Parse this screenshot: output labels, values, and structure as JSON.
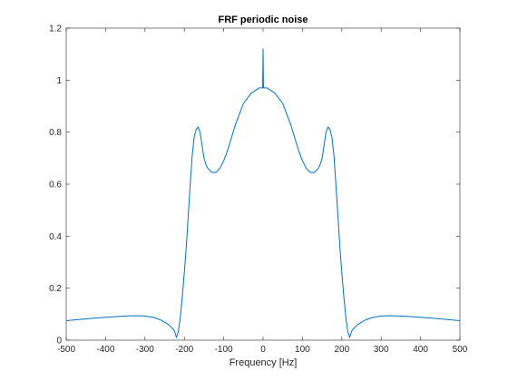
{
  "chart_data": {
    "type": "line",
    "title": "FRF periodic noise",
    "xlabel": "Frequency [Hz]",
    "ylabel": "",
    "xlim": [
      -500,
      500
    ],
    "ylim": [
      0,
      1.2
    ],
    "xticks": [
      -500,
      -400,
      -300,
      -200,
      -100,
      0,
      100,
      200,
      300,
      400,
      500
    ],
    "yticks": [
      0,
      0.2,
      0.4,
      0.6,
      0.8,
      1,
      1.2
    ],
    "grid": false,
    "series": [
      {
        "color": "#0072BD",
        "x": [
          -500,
          -450,
          -400,
          -350,
          -320,
          -300,
          -280,
          -260,
          -240,
          -230,
          -225,
          -220,
          -215,
          -210,
          -205,
          -200,
          -195,
          -190,
          -185,
          -180,
          -175,
          -170,
          -165,
          -160,
          -155,
          -150,
          -145,
          -140,
          -130,
          -120,
          -110,
          -100,
          -90,
          -80,
          -70,
          -60,
          -50,
          -40,
          -30,
          -20,
          -10,
          -5,
          -1,
          0,
          1,
          5,
          10,
          20,
          30,
          40,
          50,
          60,
          70,
          80,
          90,
          100,
          110,
          120,
          130,
          140,
          145,
          150,
          155,
          160,
          165,
          170,
          175,
          180,
          185,
          190,
          195,
          200,
          205,
          210,
          215,
          220,
          225,
          230,
          240,
          260,
          280,
          300,
          320,
          350,
          400,
          450,
          500
        ],
        "y": [
          0.075,
          0.082,
          0.088,
          0.093,
          0.094,
          0.093,
          0.088,
          0.078,
          0.06,
          0.045,
          0.035,
          0.01,
          0.035,
          0.09,
          0.17,
          0.26,
          0.36,
          0.48,
          0.6,
          0.71,
          0.78,
          0.81,
          0.82,
          0.8,
          0.75,
          0.7,
          0.675,
          0.66,
          0.645,
          0.645,
          0.66,
          0.69,
          0.73,
          0.78,
          0.83,
          0.87,
          0.91,
          0.93,
          0.95,
          0.96,
          0.97,
          0.97,
          0.97,
          1.12,
          0.97,
          0.97,
          0.97,
          0.96,
          0.95,
          0.93,
          0.91,
          0.87,
          0.83,
          0.78,
          0.73,
          0.69,
          0.66,
          0.645,
          0.645,
          0.66,
          0.675,
          0.7,
          0.75,
          0.8,
          0.82,
          0.81,
          0.78,
          0.71,
          0.6,
          0.48,
          0.36,
          0.26,
          0.17,
          0.09,
          0.035,
          0.01,
          0.035,
          0.045,
          0.06,
          0.078,
          0.088,
          0.093,
          0.094,
          0.093,
          0.088,
          0.082,
          0.075
        ]
      }
    ]
  }
}
